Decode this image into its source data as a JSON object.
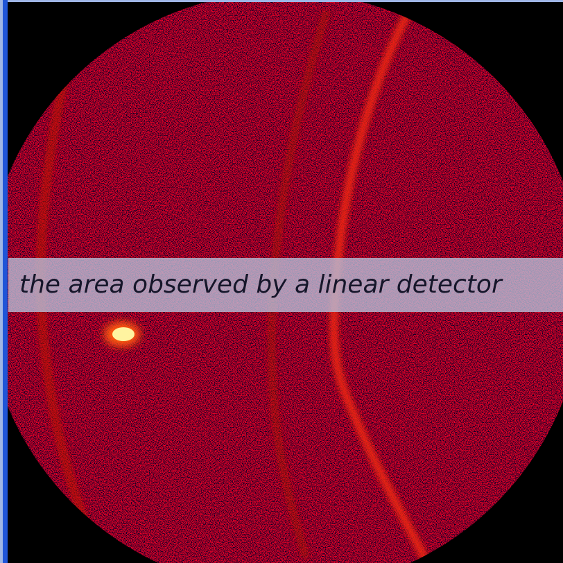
{
  "caption": {
    "text": "the area observed by a linear detector"
  }
}
